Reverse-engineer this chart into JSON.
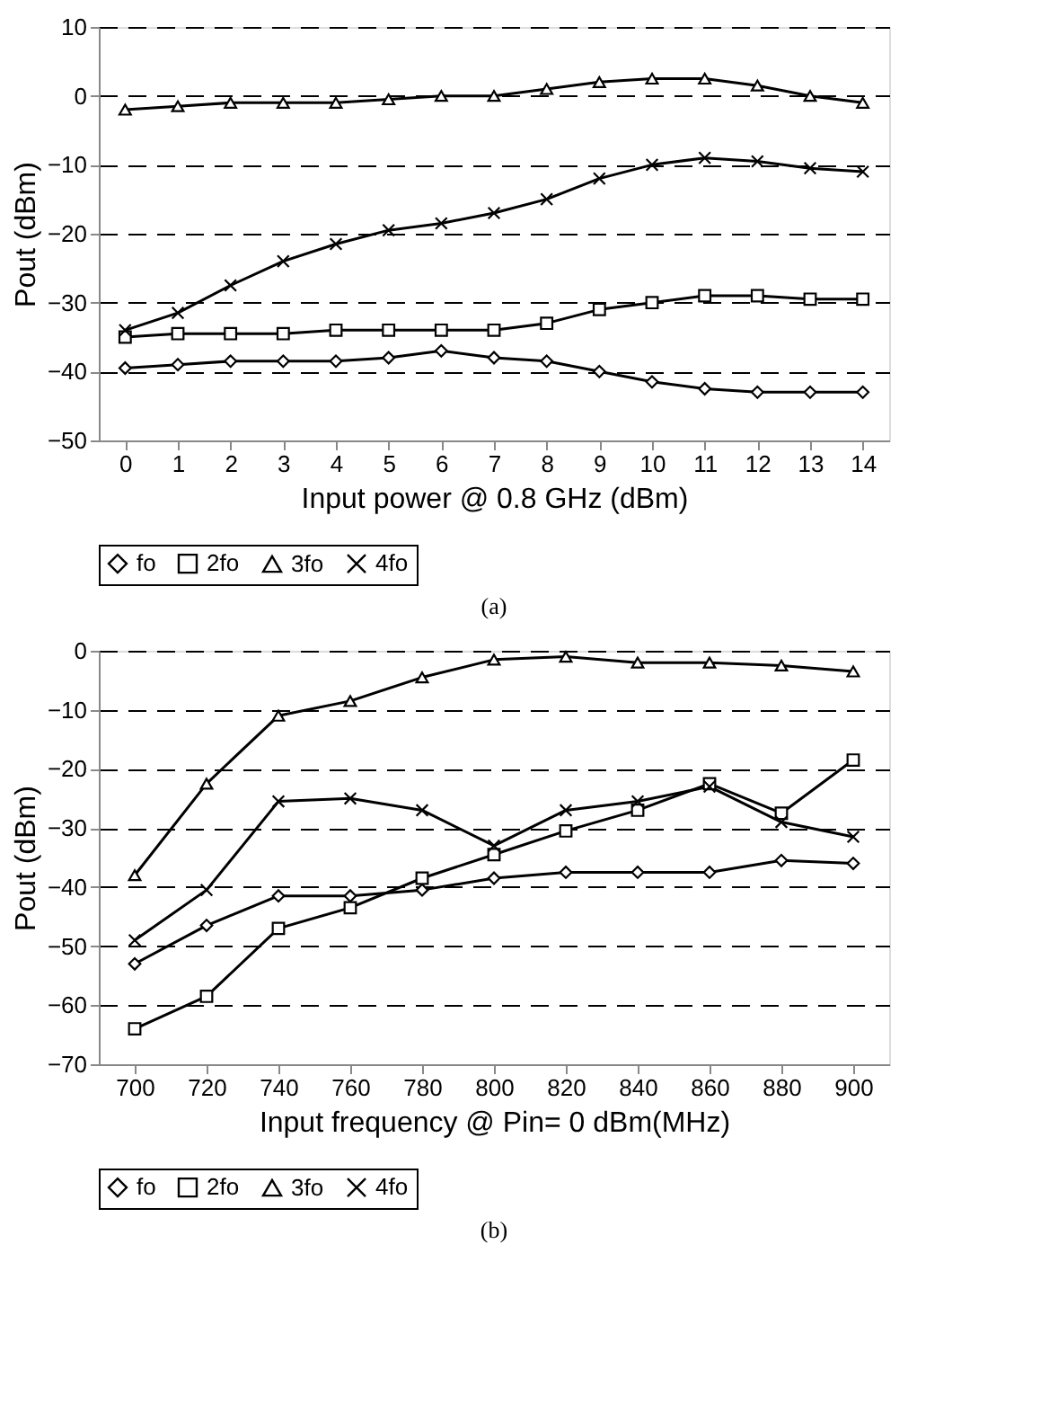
{
  "chart_data": [
    {
      "type": "line",
      "xlabel": "Input power @ 0.8 GHz (dBm)",
      "ylabel": "Pout (dBm)",
      "x": [
        0,
        1,
        2,
        3,
        4,
        5,
        6,
        7,
        8,
        9,
        10,
        11,
        12,
        13,
        14
      ],
      "xlim": [
        -0.5,
        14.5
      ],
      "xticks": [
        0,
        1,
        2,
        3,
        4,
        5,
        6,
        7,
        8,
        9,
        10,
        11,
        12,
        13,
        14
      ],
      "ylim": [
        -50,
        10
      ],
      "yticks": [
        -50,
        -40,
        -30,
        -20,
        -10,
        0,
        10
      ],
      "grid": "y",
      "legend": "bottom",
      "line_style": "solid",
      "annotations": [
        "(a)"
      ],
      "series": [
        {
          "name": "fo",
          "color": "#000000",
          "marker": "diamond",
          "values": [
            -39.5,
            -39,
            -38.5,
            -38.5,
            -38.5,
            -38,
            -37,
            -38,
            -38.5,
            -40,
            -41.5,
            -42.5,
            -43,
            -43,
            -43
          ]
        },
        {
          "name": "2fo",
          "color": "#000000",
          "marker": "square",
          "values": [
            -35,
            -34.5,
            -34.5,
            -34.5,
            -34,
            -34,
            -34,
            -34,
            -33,
            -31,
            -30,
            -29,
            -29,
            -29.5,
            -29.5
          ]
        },
        {
          "name": "3fo",
          "color": "#000000",
          "marker": "triangle",
          "values": [
            -2,
            -1.5,
            -1,
            -1,
            -1,
            -0.5,
            0,
            0,
            1,
            2,
            2.5,
            2.5,
            1.5,
            0,
            -1
          ]
        },
        {
          "name": "4fo",
          "color": "#000000",
          "marker": "cross",
          "values": [
            -34,
            -31.5,
            -27.5,
            -24,
            -21.5,
            -19.5,
            -18.5,
            -17,
            -15,
            -12,
            -10,
            -9,
            -9.5,
            -10.5,
            -11
          ]
        }
      ]
    },
    {
      "type": "line",
      "xlabel": "Input frequency @ Pin= 0 dBm(MHz)",
      "ylabel": "Pout (dBm)",
      "x": [
        700,
        720,
        740,
        760,
        780,
        800,
        820,
        840,
        860,
        880,
        900
      ],
      "xlim": [
        690,
        910
      ],
      "xticks": [
        700,
        720,
        740,
        760,
        780,
        800,
        820,
        840,
        860,
        880,
        900
      ],
      "ylim": [
        -70,
        0
      ],
      "yticks": [
        -70,
        -60,
        -50,
        -40,
        -30,
        -20,
        -10,
        0
      ],
      "grid": "y",
      "legend": "bottom",
      "line_style": "solid",
      "annotations": [
        "(b)"
      ],
      "series": [
        {
          "name": "fo",
          "color": "#000000",
          "marker": "diamond",
          "values": [
            -53,
            -46.5,
            -41.5,
            -41.5,
            -40.5,
            -38.5,
            -37.5,
            -37.5,
            -37.5,
            -35.5,
            -36
          ]
        },
        {
          "name": "2fo",
          "color": "#000000",
          "marker": "square",
          "values": [
            -64,
            -58.5,
            -47,
            -43.5,
            -38.5,
            -34.5,
            -30.5,
            -27,
            -22.5,
            -27.5,
            -18.5
          ]
        },
        {
          "name": "3fo",
          "color": "#000000",
          "marker": "triangle",
          "values": [
            -38,
            -22.5,
            -11,
            -8.5,
            -4.5,
            -1.5,
            -1,
            -2,
            -2,
            -2.5,
            -3.5
          ]
        },
        {
          "name": "4fo",
          "color": "#000000",
          "marker": "cross",
          "values": [
            -49,
            -40.5,
            -25.5,
            -25,
            -27,
            -33,
            -27,
            -25.5,
            -23,
            -29,
            -31.5
          ]
        }
      ]
    }
  ]
}
